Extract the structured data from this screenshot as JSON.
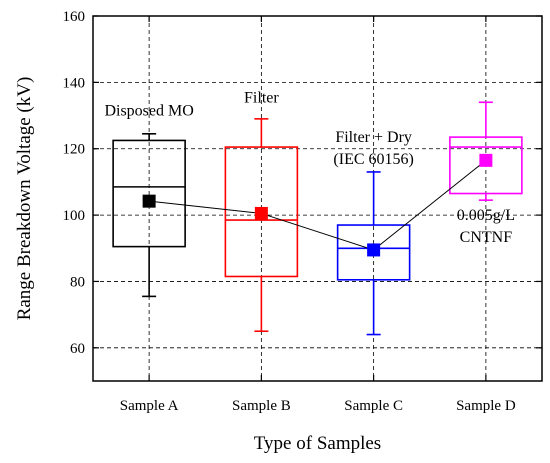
{
  "chart_data": {
    "type": "box",
    "title": "",
    "xlabel": "Type of Samples",
    "ylabel": "Range Breakdown Voltage (kV)",
    "ylim": [
      50,
      160
    ],
    "yticks": [
      60,
      80,
      100,
      120,
      140,
      160
    ],
    "grid": true,
    "categories": [
      "Sample A",
      "Sample B",
      "Sample C",
      "Sample D"
    ],
    "boxes": [
      {
        "category": "Sample A",
        "whisker_low": 75.5,
        "q1": 90.5,
        "median": 108.5,
        "q3": 122.5,
        "whisker_high": 124.5,
        "mean": 104.2,
        "color": "#000000"
      },
      {
        "category": "Sample B",
        "whisker_low": 65,
        "q1": 81.5,
        "median": 98.5,
        "q3": 120.5,
        "whisker_high": 129,
        "mean": 100.5,
        "color": "#ff0000"
      },
      {
        "category": "Sample C",
        "whisker_low": 64,
        "q1": 80.5,
        "median": 90,
        "q3": 97,
        "whisker_high": 113,
        "mean": 89.5,
        "color": "#0000ff"
      },
      {
        "category": "Sample D",
        "whisker_low": 104.5,
        "q1": 106.5,
        "median": 120.5,
        "q3": 123.5,
        "whisker_high": 134,
        "mean": 116.5,
        "color": "#ff00ff"
      }
    ],
    "mean_line_color": "#000000",
    "annotations": [
      {
        "lines": [
          "Disposed MO"
        ],
        "category": "Sample A",
        "y": 130
      },
      {
        "lines": [
          "Filter"
        ],
        "category": "Sample B",
        "y": 134
      },
      {
        "lines": [
          "Filter + Dry",
          "(IEC 60156)"
        ],
        "category": "Sample C",
        "y": 122
      },
      {
        "lines": [
          "0.005g/L",
          "CNTNF"
        ],
        "category": "Sample D",
        "y": 98.5
      }
    ]
  }
}
